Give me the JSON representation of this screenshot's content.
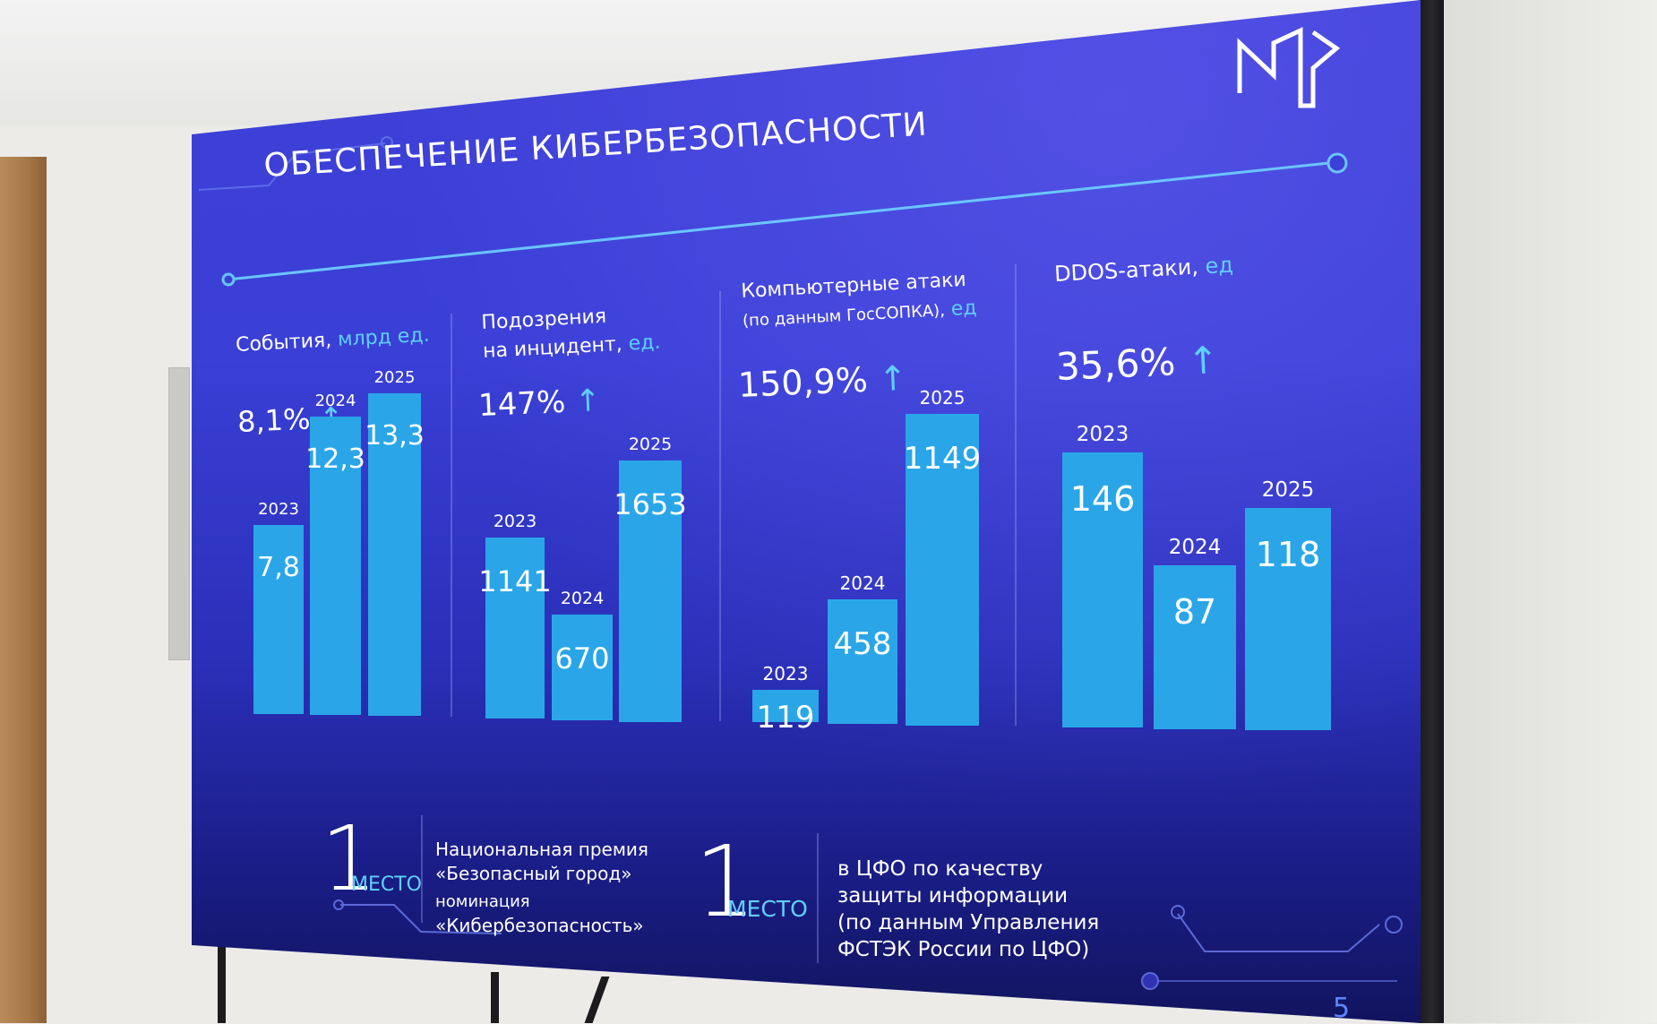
{
  "slide": {
    "title": "ОБЕСПЕЧЕНИЕ КИБЕРБЕЗОПАСНОСТИ",
    "logo": "logo-mark",
    "page_number": "5",
    "colors": {
      "bar": "#2aa6e8",
      "accent": "#5fd0ff",
      "screen_blue": "#3a3fd6"
    }
  },
  "panels": [
    {
      "title": "События,",
      "unit": "млрд ед.",
      "growth": "8,1%"
    },
    {
      "title_line1": "Подозрения",
      "title_line2": "на инцидент,",
      "unit": "ед.",
      "growth": "147%"
    },
    {
      "title": "Компьютерные атаки",
      "subtitle": "(по данным ГосСОПКА),",
      "unit": "ед",
      "growth": "150,9%"
    },
    {
      "title": "DDOS-атаки,",
      "unit": "ед",
      "growth": "35,6%"
    }
  ],
  "arrow_glyph": "↑",
  "chart_data": [
    {
      "type": "bar",
      "title": "События, млрд ед.",
      "categories": [
        "2023",
        "2024",
        "2025"
      ],
      "values": [
        7.8,
        12.3,
        13.3
      ],
      "labels": [
        "7,8",
        "12,3",
        "13,3"
      ]
    },
    {
      "type": "bar",
      "title": "Подозрения на инцидент, ед.",
      "categories": [
        "2023",
        "2024",
        "2025"
      ],
      "values": [
        1141,
        670,
        1653
      ],
      "labels": [
        "1141",
        "670",
        "1653"
      ]
    },
    {
      "type": "bar",
      "title": "Компьютерные атаки (по данным ГосСОПКА), ед",
      "categories": [
        "2023",
        "2024",
        "2025"
      ],
      "values": [
        119,
        458,
        1149
      ],
      "labels": [
        "119",
        "458",
        "1149"
      ]
    },
    {
      "type": "bar",
      "title": "DDOS-атаки, ед",
      "categories": [
        "2023",
        "2024",
        "2025"
      ],
      "values": [
        146,
        87,
        118
      ],
      "labels": [
        "146",
        "87",
        "118"
      ]
    }
  ],
  "awards": [
    {
      "number": "1",
      "unit": "МЕСТО",
      "line1": "Национальная премия",
      "line2": "«Безопасный город»",
      "line3": "номинация",
      "line4": "«Кибербезопасность»"
    },
    {
      "number": "1",
      "unit": "МЕСТО",
      "line1": "в ЦФО по качеству",
      "line2": "защиты информации",
      "line3": "(по данным Управления",
      "line4": "ФСТЭК России по ЦФО)"
    }
  ]
}
